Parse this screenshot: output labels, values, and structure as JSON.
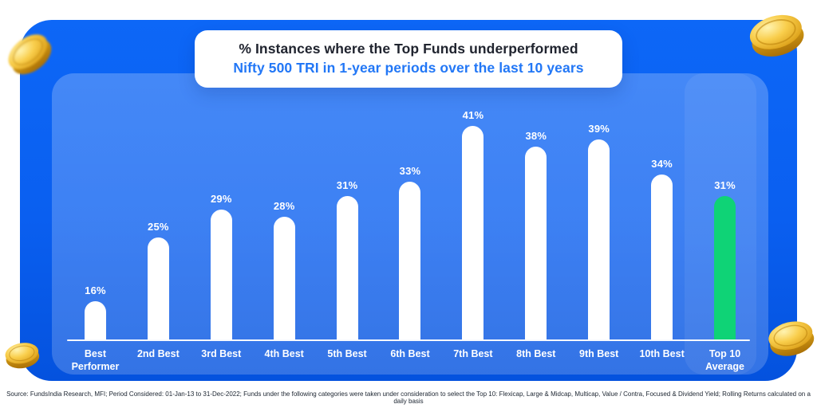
{
  "title": {
    "line1": "% Instances where the Top Funds underperformed",
    "line2": "Nifty 500 TRI in 1-year periods over the last 10 years"
  },
  "chart_data": {
    "type": "bar",
    "title": "% Instances where the Top Funds underperformed Nifty 500 TRI in 1-year periods over the last 10 years",
    "categories": [
      "Best Performer",
      "2nd Best",
      "3rd Best",
      "4th Best",
      "5th Best",
      "6th Best",
      "7th Best",
      "8th Best",
      "9th Best",
      "10th Best",
      "Top 10 Average"
    ],
    "values": [
      16,
      25,
      29,
      28,
      31,
      33,
      41,
      38,
      39,
      34,
      31
    ],
    "value_suffix": "%",
    "highlight_index": 10,
    "bar_color": "#FFFFFF",
    "highlight_color": "#0FD376",
    "xlabel": "",
    "ylabel": "",
    "grid": false,
    "legend": "none",
    "background_color": "#0A5FF0",
    "panel_color": "#4084F6"
  },
  "footer": {
    "source": "Source: FundsIndia Research, MFI; Period Considered: 01-Jan-13 to 31-Dec-2022; Funds under the following categories were taken under consideration to select the Top 10: Flexicap, Large & Midcap, Multicap, Value / Contra, Focused & Dividend Yield; Rolling Returns calculated on a daily basis"
  },
  "decorations": {
    "coins": [
      "gold-coin-top-left",
      "gold-coin-top-right",
      "gold-coin-bottom-left",
      "gold-coin-bottom-right"
    ],
    "coin_color": "#F7C843"
  }
}
